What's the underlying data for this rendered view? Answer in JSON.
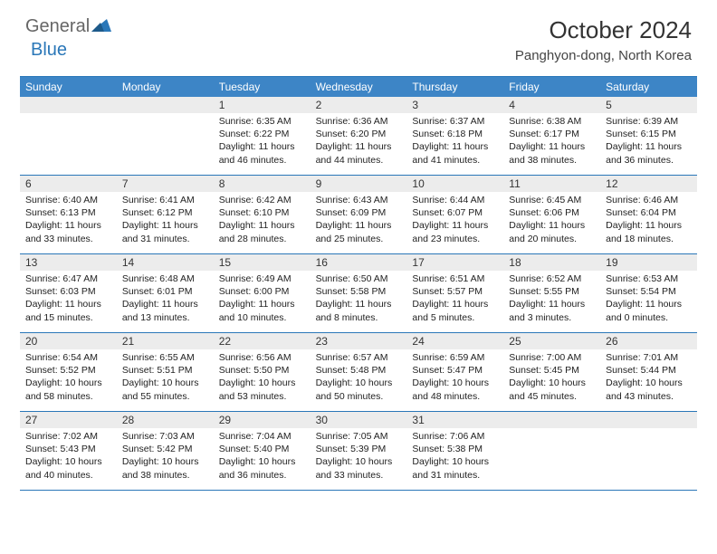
{
  "logo": {
    "part1": "General",
    "part2": "Blue"
  },
  "title": "October 2024",
  "location": "Panghyon-dong, North Korea",
  "colors": {
    "header_bg": "#3d85c6",
    "border": "#2a77b8",
    "daynum_bg": "#ececec",
    "text": "#222222",
    "logo_gray": "#666666",
    "logo_blue": "#2a77b8"
  },
  "day_names": [
    "Sunday",
    "Monday",
    "Tuesday",
    "Wednesday",
    "Thursday",
    "Friday",
    "Saturday"
  ],
  "weeks": [
    [
      null,
      null,
      {
        "n": "1",
        "sr": "6:35 AM",
        "ss": "6:22 PM",
        "dl": "11 hours and 46 minutes."
      },
      {
        "n": "2",
        "sr": "6:36 AM",
        "ss": "6:20 PM",
        "dl": "11 hours and 44 minutes."
      },
      {
        "n": "3",
        "sr": "6:37 AM",
        "ss": "6:18 PM",
        "dl": "11 hours and 41 minutes."
      },
      {
        "n": "4",
        "sr": "6:38 AM",
        "ss": "6:17 PM",
        "dl": "11 hours and 38 minutes."
      },
      {
        "n": "5",
        "sr": "6:39 AM",
        "ss": "6:15 PM",
        "dl": "11 hours and 36 minutes."
      }
    ],
    [
      {
        "n": "6",
        "sr": "6:40 AM",
        "ss": "6:13 PM",
        "dl": "11 hours and 33 minutes."
      },
      {
        "n": "7",
        "sr": "6:41 AM",
        "ss": "6:12 PM",
        "dl": "11 hours and 31 minutes."
      },
      {
        "n": "8",
        "sr": "6:42 AM",
        "ss": "6:10 PM",
        "dl": "11 hours and 28 minutes."
      },
      {
        "n": "9",
        "sr": "6:43 AM",
        "ss": "6:09 PM",
        "dl": "11 hours and 25 minutes."
      },
      {
        "n": "10",
        "sr": "6:44 AM",
        "ss": "6:07 PM",
        "dl": "11 hours and 23 minutes."
      },
      {
        "n": "11",
        "sr": "6:45 AM",
        "ss": "6:06 PM",
        "dl": "11 hours and 20 minutes."
      },
      {
        "n": "12",
        "sr": "6:46 AM",
        "ss": "6:04 PM",
        "dl": "11 hours and 18 minutes."
      }
    ],
    [
      {
        "n": "13",
        "sr": "6:47 AM",
        "ss": "6:03 PM",
        "dl": "11 hours and 15 minutes."
      },
      {
        "n": "14",
        "sr": "6:48 AM",
        "ss": "6:01 PM",
        "dl": "11 hours and 13 minutes."
      },
      {
        "n": "15",
        "sr": "6:49 AM",
        "ss": "6:00 PM",
        "dl": "11 hours and 10 minutes."
      },
      {
        "n": "16",
        "sr": "6:50 AM",
        "ss": "5:58 PM",
        "dl": "11 hours and 8 minutes."
      },
      {
        "n": "17",
        "sr": "6:51 AM",
        "ss": "5:57 PM",
        "dl": "11 hours and 5 minutes."
      },
      {
        "n": "18",
        "sr": "6:52 AM",
        "ss": "5:55 PM",
        "dl": "11 hours and 3 minutes."
      },
      {
        "n": "19",
        "sr": "6:53 AM",
        "ss": "5:54 PM",
        "dl": "11 hours and 0 minutes."
      }
    ],
    [
      {
        "n": "20",
        "sr": "6:54 AM",
        "ss": "5:52 PM",
        "dl": "10 hours and 58 minutes."
      },
      {
        "n": "21",
        "sr": "6:55 AM",
        "ss": "5:51 PM",
        "dl": "10 hours and 55 minutes."
      },
      {
        "n": "22",
        "sr": "6:56 AM",
        "ss": "5:50 PM",
        "dl": "10 hours and 53 minutes."
      },
      {
        "n": "23",
        "sr": "6:57 AM",
        "ss": "5:48 PM",
        "dl": "10 hours and 50 minutes."
      },
      {
        "n": "24",
        "sr": "6:59 AM",
        "ss": "5:47 PM",
        "dl": "10 hours and 48 minutes."
      },
      {
        "n": "25",
        "sr": "7:00 AM",
        "ss": "5:45 PM",
        "dl": "10 hours and 45 minutes."
      },
      {
        "n": "26",
        "sr": "7:01 AM",
        "ss": "5:44 PM",
        "dl": "10 hours and 43 minutes."
      }
    ],
    [
      {
        "n": "27",
        "sr": "7:02 AM",
        "ss": "5:43 PM",
        "dl": "10 hours and 40 minutes."
      },
      {
        "n": "28",
        "sr": "7:03 AM",
        "ss": "5:42 PM",
        "dl": "10 hours and 38 minutes."
      },
      {
        "n": "29",
        "sr": "7:04 AM",
        "ss": "5:40 PM",
        "dl": "10 hours and 36 minutes."
      },
      {
        "n": "30",
        "sr": "7:05 AM",
        "ss": "5:39 PM",
        "dl": "10 hours and 33 minutes."
      },
      {
        "n": "31",
        "sr": "7:06 AM",
        "ss": "5:38 PM",
        "dl": "10 hours and 31 minutes."
      },
      null,
      null
    ]
  ],
  "labels": {
    "sunrise": "Sunrise:",
    "sunset": "Sunset:",
    "daylight": "Daylight:"
  }
}
